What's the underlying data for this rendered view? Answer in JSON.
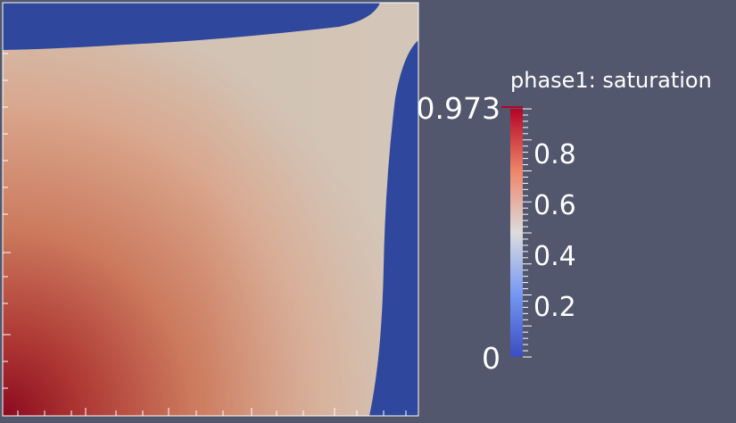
{
  "colorbar": {
    "title": "phase1: saturation",
    "max_label": "0.973",
    "min_label": "0",
    "tick_labels": [
      "0.8",
      "0.6",
      "0.4",
      "0.2"
    ],
    "range": [
      0,
      0.973
    ],
    "colormap": "cool-to-warm",
    "colors": {
      "low": "#3b4cc0",
      "mid": "#dddddd",
      "high": "#b40426"
    }
  },
  "colors": {
    "background": "#52576e",
    "water_region": "#2f479d",
    "max_region": "#8b0a1f"
  }
}
